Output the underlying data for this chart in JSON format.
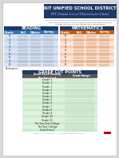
{
  "title_line1": "RIT UNIFIED SCHOOL DISTRICT",
  "title_line2": "RIT Grade Level Placement Chart",
  "desc_line1": "This is a chart comparing the nationally normed MAP RIT score ranges with the",
  "desc_line2": "school grade level skills. It can be used to determine whether students",
  "desc_line3": "at grade level and to place students with starting grade.",
  "reading_header": "READING",
  "math_header": "MATHEMATICS",
  "table_headers": [
    "Grade",
    "Fall",
    "Winter",
    "Spring"
  ],
  "reading_rows": [
    "K",
    "1",
    "2",
    "3",
    "4",
    "5",
    "6",
    "7",
    "8"
  ],
  "math_rows": [
    "K",
    "1",
    "2",
    "3",
    "4",
    "5",
    "6",
    "7",
    "8"
  ],
  "cut_header": "GRADE CUT POINTS",
  "cut_col1_header": "Grade Based Reading\nReading Level",
  "cut_col2_header": "Grade Range",
  "cut_rows": [
    [
      "Kinder 1",
      ""
    ],
    [
      "Kinder 2",
      ""
    ],
    [
      "Grade 1",
      ""
    ],
    [
      "Grade 2",
      ""
    ],
    [
      "Grade 3",
      ""
    ],
    [
      "Grade 4",
      ""
    ],
    [
      "Grade 5",
      ""
    ],
    [
      "Grade 6",
      ""
    ],
    [
      "Grade 7",
      ""
    ],
    [
      "Grade 8",
      ""
    ],
    [
      "Grade 9",
      ""
    ],
    [
      "Grade 10",
      ""
    ],
    [
      "Grade 11",
      ""
    ],
    [
      "Pre Two-Year College",
      ""
    ],
    [
      "Two-Year College",
      ""
    ],
    [
      "Grad School",
      ""
    ]
  ],
  "title_bg": "#1f3864",
  "read_hdr_bg": "#1f3864",
  "read_col_hdr_bg": "#2e75b6",
  "read_row_even": "#dae3f3",
  "read_row_odd": "#bdd7ee",
  "math_hdr_bg": "#1f3864",
  "math_col_hdr_bg": "#c55a11",
  "math_row_even": "#fce4d6",
  "math_row_odd": "#f8cbad",
  "cut_hdr_bg": "#1f3864",
  "cut_col_hdr_bg": "#595959",
  "cut_row_even": "#e2efda",
  "cut_row_odd": "#c6efce",
  "footer_text": "Research & Accountability  |  Updated: October 30, 2013",
  "susd_logo_color": "#c00000",
  "page_bg": "#ffffff",
  "outer_bg": "#d9d9d9"
}
